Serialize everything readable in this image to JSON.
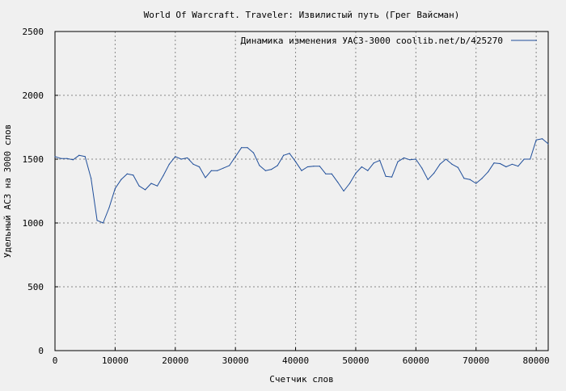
{
  "chart_data": {
    "type": "line",
    "title": "World Of Warcraft. Traveler: Извилистый путь (Грег Вайсман)",
    "xlabel": "Счетчик слов",
    "ylabel": "Удельный АСЗ на 3000 слов",
    "xlim": [
      0,
      82000
    ],
    "ylim": [
      0,
      2500
    ],
    "x_ticks": [
      0,
      10000,
      20000,
      30000,
      40000,
      50000,
      60000,
      70000,
      80000
    ],
    "y_ticks": [
      0,
      500,
      1000,
      1500,
      2000,
      2500
    ],
    "x_tick_labels": [
      "0",
      "10000",
      "20000",
      "30000",
      "40000",
      "50000",
      "60000",
      "70000",
      "80000"
    ],
    "y_tick_labels": [
      "0",
      "500",
      "1000",
      "1500",
      "2000",
      "2500"
    ],
    "grid": true,
    "legend_position": "top-right",
    "line_color": "#1f4e9a",
    "series": [
      {
        "name": "Динамика изменения УАСЗ-3000  coollib.net/b/425270",
        "x": [
          0,
          1000,
          2000,
          3000,
          4000,
          5000,
          6000,
          7000,
          8000,
          9000,
          10000,
          11000,
          12000,
          13000,
          14000,
          15000,
          16000,
          17000,
          18000,
          19000,
          20000,
          21000,
          22000,
          23000,
          24000,
          25000,
          26000,
          27000,
          28000,
          29000,
          30000,
          31000,
          32000,
          33000,
          34000,
          35000,
          36000,
          37000,
          38000,
          39000,
          40000,
          41000,
          42000,
          43000,
          44000,
          45000,
          46000,
          47000,
          48000,
          49000,
          50000,
          51000,
          52000,
          53000,
          54000,
          55000,
          56000,
          57000,
          58000,
          59000,
          60000,
          61000,
          62000,
          63000,
          64000,
          65000,
          66000,
          67000,
          68000,
          69000,
          70000,
          71000,
          72000,
          73000,
          74000,
          75000,
          76000,
          77000,
          78000,
          79000,
          80000,
          81000,
          82000
        ],
        "values": [
          1520,
          1505,
          1505,
          1495,
          1530,
          1520,
          1350,
          1020,
          1000,
          1120,
          1270,
          1340,
          1385,
          1375,
          1290,
          1260,
          1310,
          1290,
          1370,
          1460,
          1520,
          1500,
          1510,
          1460,
          1440,
          1355,
          1410,
          1410,
          1430,
          1450,
          1520,
          1590,
          1590,
          1550,
          1450,
          1410,
          1420,
          1450,
          1530,
          1545,
          1480,
          1410,
          1440,
          1445,
          1445,
          1385,
          1385,
          1320,
          1250,
          1310,
          1390,
          1440,
          1410,
          1470,
          1490,
          1365,
          1360,
          1480,
          1510,
          1495,
          1500,
          1430,
          1340,
          1390,
          1460,
          1500,
          1460,
          1435,
          1350,
          1340,
          1310,
          1350,
          1400,
          1470,
          1465,
          1440,
          1460,
          1445,
          1500,
          1500,
          1650,
          1660,
          1620
        ]
      }
    ]
  }
}
